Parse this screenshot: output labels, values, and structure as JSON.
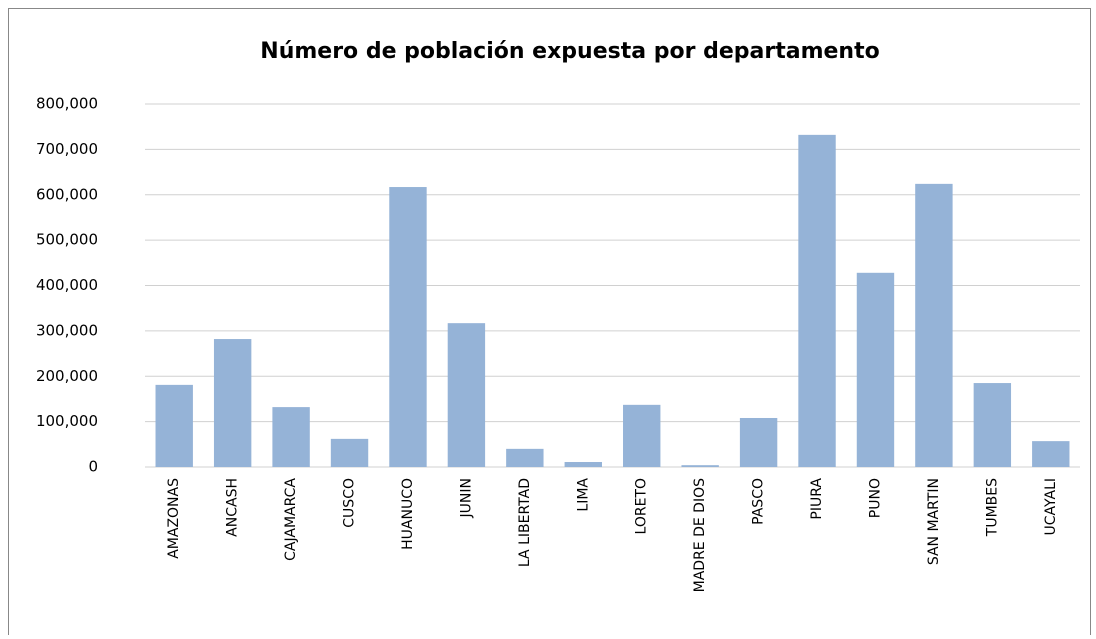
{
  "chart_data": {
    "type": "bar",
    "title": "Número de población expuesta por departamento",
    "categories": [
      "AMAZONAS",
      "ANCASH",
      "CAJAMARCA",
      "CUSCO",
      "HUANUCO",
      "JUNIN",
      "LA LIBERTAD",
      "LIMA",
      "LORETO",
      "MADRE DE DIOS",
      "PASCO",
      "PIURA",
      "PUNO",
      "SAN MARTIN",
      "TUMBES",
      "UCAYALI"
    ],
    "values": [
      181000,
      282000,
      132000,
      62000,
      617000,
      317000,
      40000,
      11000,
      137000,
      4000,
      108000,
      732000,
      428000,
      624000,
      185000,
      57000
    ],
    "color": "#95b3d7",
    "ylim": [
      0,
      800000
    ],
    "yticks": [
      0,
      {
        "value": 100000,
        "label": "100,000"
      },
      {
        "value": 200000,
        "label": "200,000"
      },
      {
        "value": 300000,
        "label": "300,000"
      },
      {
        "value": 400000,
        "label": "400,000"
      },
      {
        "value": 500000,
        "label": "500,000"
      },
      {
        "value": 600000,
        "label": "600,000"
      },
      {
        "value": 700000,
        "label": "700,000"
      },
      {
        "value": 800000,
        "label": "800,000"
      }
    ],
    "grid": true
  }
}
